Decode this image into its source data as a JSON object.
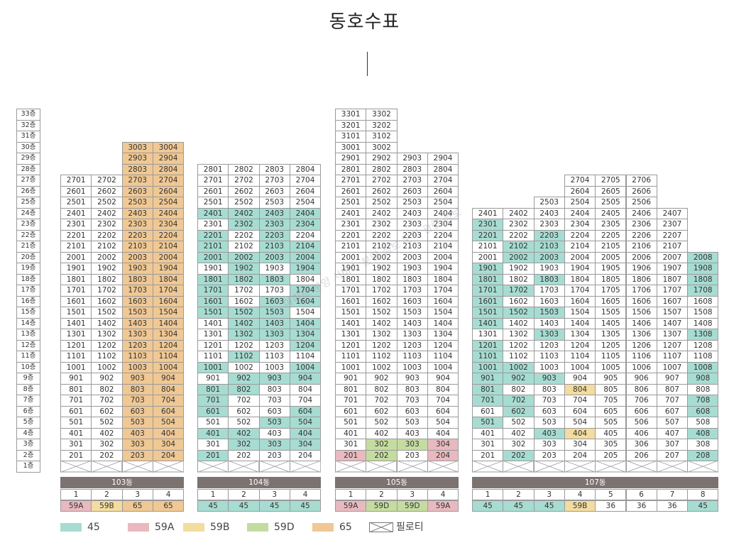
{
  "title": "동호수표",
  "watermark": "아파트 분양 서비스 분양 정보 문의 관련 정보",
  "floor_labels": [
    "33층",
    "32층",
    "31층",
    "30층",
    "29층",
    "28층",
    "27층",
    "26층",
    "25층",
    "24층",
    "23층",
    "22층",
    "21층",
    "20층",
    "19층",
    "18층",
    "17층",
    "16층",
    "15층",
    "14층",
    "13층",
    "12층",
    "11층",
    "10층",
    "9층",
    "8층",
    "7층",
    "6층",
    "5층",
    "4층",
    "3층",
    "2층",
    "1층"
  ],
  "colors": {
    "45": "#a7dcd2",
    "59A": "#e8b9bf",
    "59B": "#f3dc9f",
    "59D": "#c5dca0",
    "65": "#f0c894",
    "36": "#ffffff",
    "grid": "#9a9a9a",
    "header": "#7c7270"
  },
  "buildings": [
    {
      "name": "103동",
      "lines": [
        "1",
        "2",
        "3",
        "4"
      ],
      "types": [
        "59A",
        "59B",
        "65",
        "65"
      ],
      "top": [
        27,
        27,
        30,
        30
      ],
      "overrides": {}
    },
    {
      "name": "104동",
      "lines": [
        "1",
        "2",
        "3",
        "4"
      ],
      "types": [
        "45",
        "45",
        "45",
        "45"
      ],
      "top": [
        28,
        28,
        28,
        28
      ],
      "overrides": {
        "24": [
          "45",
          "45",
          "45",
          "45"
        ],
        "23": [
          "",
          "45",
          "45",
          "45"
        ],
        "22": [
          "45",
          "",
          "45",
          ""
        ],
        "21": [
          "45",
          "",
          "45",
          "45"
        ],
        "20": [
          "45",
          "45",
          "45",
          "45"
        ],
        "19": [
          "",
          "45",
          "",
          "45"
        ],
        "18": [
          "45",
          "45",
          "45",
          ""
        ],
        "17": [
          "45",
          "",
          "",
          "45"
        ],
        "16": [
          "45",
          "",
          "45",
          "45"
        ],
        "15": [
          "45",
          "45",
          "45",
          ""
        ],
        "14": [
          "",
          "45",
          "45",
          "45"
        ],
        "13": [
          "",
          "45",
          "45",
          "45"
        ],
        "12": [
          "",
          "",
          "",
          "45"
        ],
        "11": [
          "",
          "45",
          "",
          ""
        ],
        "10": [
          "45",
          "",
          "",
          "45"
        ],
        "9": [
          "",
          "45",
          "45",
          "45"
        ],
        "8": [
          "45",
          "45",
          "",
          ""
        ],
        "7": [
          "45",
          "",
          "",
          ""
        ],
        "6": [
          "45",
          "",
          "",
          "45"
        ],
        "5": [
          "",
          "",
          "45",
          "45"
        ],
        "4": [
          "45",
          "45",
          "",
          "45"
        ],
        "3": [
          "",
          "45",
          "45",
          "45"
        ],
        "2": [
          "45",
          "",
          "",
          ""
        ]
      }
    },
    {
      "name": "105동",
      "lines": [
        "1",
        "2",
        "3",
        "4"
      ],
      "types": [
        "59A",
        "59D",
        "59D",
        "59A"
      ],
      "top": [
        33,
        33,
        29,
        29
      ],
      "overrides": {
        "3": [
          "",
          "59D",
          "59D",
          "59A"
        ],
        "2": [
          "59A",
          "59D",
          "",
          "59A"
        ]
      }
    },
    {
      "name": "107동",
      "lines": [
        "1",
        "2",
        "3",
        "4",
        "5",
        "6",
        "7",
        "8"
      ],
      "types": [
        "45",
        "45",
        "45",
        "59B",
        "36",
        "36",
        "36",
        "45"
      ],
      "top": [
        24,
        24,
        25,
        27,
        27,
        27,
        24,
        20
      ],
      "overrides": {
        "23": [
          "45",
          "",
          "",
          "",
          "",
          "",
          "",
          ""
        ],
        "22": [
          "45",
          "",
          "45",
          "",
          "",
          "",
          "",
          ""
        ],
        "21": [
          "",
          "45",
          "45",
          "",
          "",
          "",
          "",
          ""
        ],
        "20": [
          "",
          "45",
          "45",
          "",
          "",
          "",
          "",
          "45"
        ],
        "19": [
          "45",
          "",
          "",
          "",
          "",
          "",
          "",
          "45"
        ],
        "18": [
          "45",
          "",
          "45",
          "",
          "",
          "",
          "",
          "45"
        ],
        "17": [
          "45",
          "45",
          "",
          "",
          "",
          "",
          "",
          "45"
        ],
        "16": [
          "45",
          "",
          "",
          "",
          "",
          "",
          "",
          ""
        ],
        "15": [
          "45",
          "45",
          "45",
          "",
          "",
          "",
          "",
          ""
        ],
        "14": [
          "45",
          "",
          "",
          "",
          "",
          "",
          "",
          ""
        ],
        "13": [
          "",
          "",
          "45",
          "",
          "",
          "",
          "",
          "45"
        ],
        "12": [
          "45",
          "",
          "",
          "",
          "",
          "",
          "",
          ""
        ],
        "11": [
          "45",
          "",
          "",
          "",
          "",
          "",
          "",
          ""
        ],
        "10": [
          "45",
          "45",
          "",
          "",
          "",
          "",
          "",
          "45"
        ],
        "9": [
          "45",
          "45",
          "45",
          "",
          "",
          "",
          "",
          "45"
        ],
        "8": [
          "45",
          "",
          "",
          "59B",
          "",
          "",
          "",
          ""
        ],
        "7": [
          "45",
          "45",
          "",
          "",
          "",
          "",
          "",
          "45"
        ],
        "6": [
          "",
          "45",
          "",
          "",
          "",
          "",
          "",
          "45"
        ],
        "5": [
          "45",
          "",
          "",
          "",
          "",
          "",
          "",
          ""
        ],
        "4": [
          "",
          "",
          "45",
          "59B",
          "",
          "",
          "",
          "45"
        ],
        "3": [
          "",
          "",
          "",
          "",
          "",
          "",
          "",
          ""
        ],
        "2": [
          "",
          "45",
          "",
          "",
          "",
          "",
          "",
          "45"
        ]
      }
    }
  ],
  "legend": [
    {
      "label": "45",
      "color": "#a7dcd2"
    },
    {
      "label": "59A",
      "color": "#e8b9bf"
    },
    {
      "label": "59B",
      "color": "#f3dc9f"
    },
    {
      "label": "59D",
      "color": "#c5dca0"
    },
    {
      "label": "65",
      "color": "#f0c894"
    },
    {
      "label": "필로티",
      "color": "pattern"
    }
  ]
}
